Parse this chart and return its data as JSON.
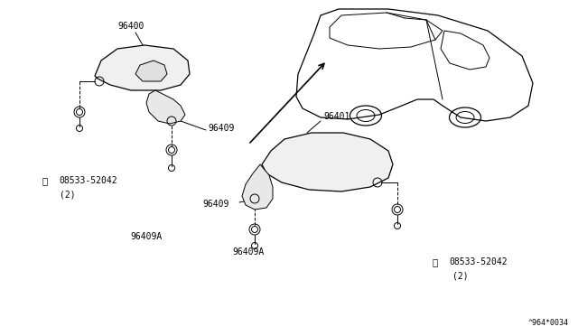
{
  "bg_color": "#ffffff",
  "line_color": "#000000",
  "fig_width": 6.4,
  "fig_height": 3.72,
  "dpi": 100,
  "watermark": "^964*0034"
}
